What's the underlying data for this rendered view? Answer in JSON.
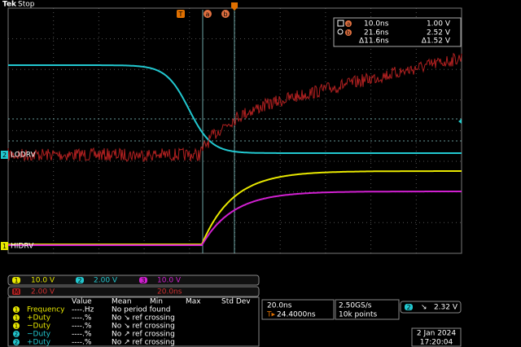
{
  "header": {
    "brand": "Tek",
    "status": "Stop"
  },
  "markers": {
    "trigger": "T",
    "a": "a",
    "b": "b"
  },
  "cursor_readout": {
    "a": {
      "label": "a",
      "time": "10.0ns",
      "voltage": "1.00 V"
    },
    "b": {
      "label": "b",
      "time": "21.6ns",
      "voltage": "2.52 V"
    },
    "delta": {
      "time": "Δ11.6ns",
      "voltage": "Δ1.52 V"
    }
  },
  "channel_labels": [
    {
      "number": "2",
      "name": "LODRV"
    },
    {
      "number": "1",
      "name": "HIDRV"
    }
  ],
  "channels": [
    {
      "number": "1",
      "scale": "10.0 V"
    },
    {
      "number": "2",
      "scale": "2.00 V"
    },
    {
      "number": "3",
      "scale": "10.0 V"
    }
  ],
  "math": {
    "label": "M",
    "scale": "2.00 V",
    "time": "20.0ns"
  },
  "measurements": {
    "headers": [
      "Value",
      "Mean",
      "Min",
      "Max",
      "Std Dev"
    ],
    "rows": [
      {
        "source": "1",
        "name": "Frequency",
        "value": "----.Hz",
        "note": "No period found"
      },
      {
        "source": "1",
        "name": "+Duty",
        "value": "----.%",
        "note": "No ↘ ref crossing"
      },
      {
        "source": "1",
        "name": "−Duty",
        "value": "----.%",
        "note": "No ↘ ref crossing"
      },
      {
        "source": "2",
        "name": "−Duty",
        "value": "----.%",
        "note": "No ↗ ref crossing"
      },
      {
        "source": "2",
        "name": "+Duty",
        "value": "----.%",
        "note": "No ↗ ref crossing"
      }
    ]
  },
  "timebase": {
    "scale": "20.0ns",
    "position": "24.4000ns",
    "sample_rate": "2.50GS/s",
    "record_length": "10k points"
  },
  "trigger": {
    "source": "2",
    "slope": "↘",
    "level": "2.32 V"
  },
  "datetime": {
    "date": "2 Jan 2024",
    "time": "17:20:04"
  }
}
